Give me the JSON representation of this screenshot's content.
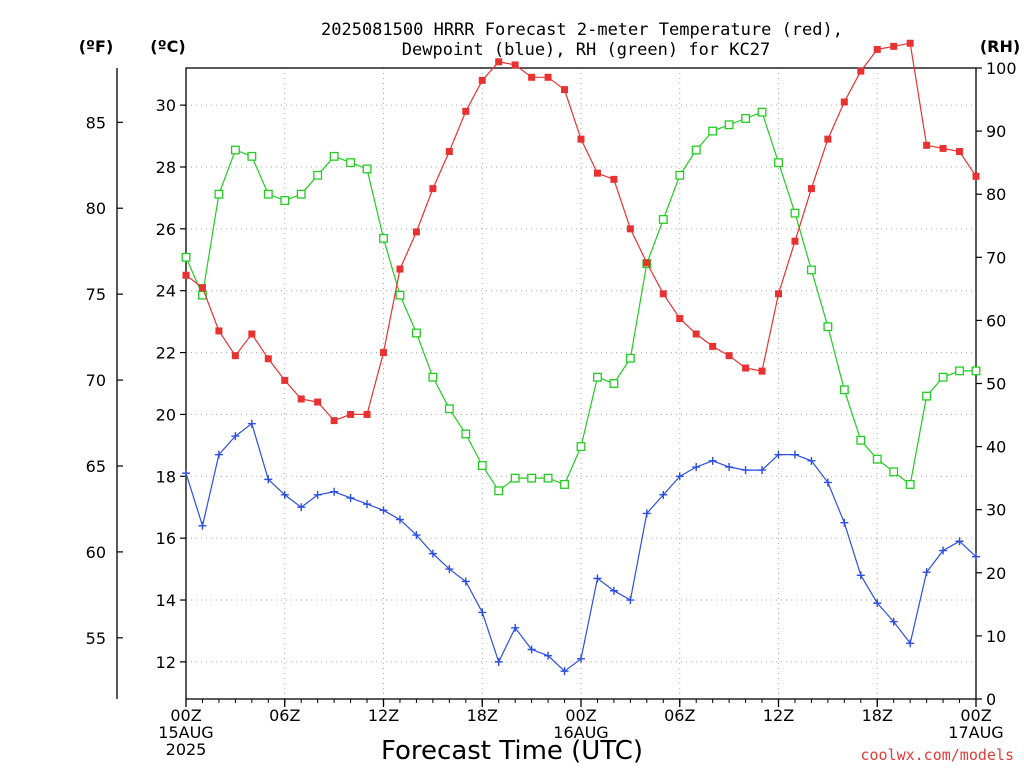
{
  "chart_data": {
    "type": "line",
    "title_line1": "2025081500 HRRR Forecast 2-meter Temperature (red),",
    "title_line2": "Dewpoint (blue), RH (green) for KC27",
    "xlabel": "Forecast Time (UTC)",
    "credit": "coolwx.com/models",
    "units": {
      "f": "(ºF)",
      "c": "(ºC)",
      "rh": "(RH)"
    },
    "x": [
      0,
      1,
      2,
      3,
      4,
      5,
      6,
      7,
      8,
      9,
      10,
      11,
      12,
      13,
      14,
      15,
      16,
      17,
      18,
      19,
      20,
      21,
      22,
      23,
      24,
      25,
      26,
      27,
      28,
      29,
      30,
      31,
      32,
      33,
      34,
      35,
      36,
      37,
      38,
      39,
      40,
      41,
      42,
      43,
      44,
      45,
      46,
      47,
      48
    ],
    "xlim": [
      0,
      48
    ],
    "x_ticks": [
      {
        "x": 0,
        "lines": [
          "00Z",
          "15AUG",
          "2025"
        ]
      },
      {
        "x": 6,
        "lines": [
          "06Z"
        ]
      },
      {
        "x": 12,
        "lines": [
          "12Z"
        ]
      },
      {
        "x": 18,
        "lines": [
          "18Z"
        ]
      },
      {
        "x": 24,
        "lines": [
          "00Z",
          "16AUG"
        ]
      },
      {
        "x": 30,
        "lines": [
          "06Z"
        ]
      },
      {
        "x": 36,
        "lines": [
          "12Z"
        ]
      },
      {
        "x": 42,
        "lines": [
          "18Z"
        ]
      },
      {
        "x": 48,
        "lines": [
          "00Z",
          "17AUG"
        ]
      }
    ],
    "ylim_c": [
      10.8,
      31.2
    ],
    "yticks_c": [
      "12",
      "14",
      "16",
      "18",
      "20",
      "22",
      "24",
      "26",
      "28",
      "30"
    ],
    "yticks_f": [
      "55",
      "60",
      "65",
      "70",
      "75",
      "80",
      "85"
    ],
    "ylim_rh": [
      0,
      100
    ],
    "yticks_rh": [
      "0",
      "10",
      "20",
      "30",
      "40",
      "50",
      "60",
      "70",
      "80",
      "90",
      "100"
    ],
    "grid": true,
    "series": [
      {
        "name": "Temperature",
        "color": "#e83232",
        "marker": "filled-square",
        "axis": "c",
        "values": [
          24.5,
          24.1,
          22.7,
          21.9,
          22.6,
          21.8,
          21.1,
          20.5,
          20.4,
          19.8,
          20.0,
          20.0,
          22.0,
          24.7,
          25.9,
          27.3,
          28.5,
          29.8,
          30.8,
          31.4,
          31.3,
          30.9,
          30.9,
          30.5,
          28.9,
          27.8,
          27.6,
          26.0,
          24.9,
          23.9,
          23.1,
          22.6,
          22.2,
          21.9,
          21.5,
          21.4,
          23.9,
          25.6,
          27.3,
          28.9,
          30.1,
          31.1,
          31.8,
          31.9,
          32.0,
          28.7,
          28.6,
          28.5,
          27.7
        ]
      },
      {
        "name": "Dewpoint",
        "color": "#2b4fe0",
        "marker": "plus",
        "axis": "c",
        "values": [
          18.1,
          16.4,
          18.7,
          19.3,
          19.7,
          17.9,
          17.4,
          17.0,
          17.4,
          17.5,
          17.3,
          17.1,
          16.9,
          16.6,
          16.1,
          15.5,
          15.0,
          14.6,
          13.6,
          12.0,
          13.1,
          12.4,
          12.2,
          11.7,
          12.1,
          14.7,
          14.3,
          14.0,
          16.8,
          17.4,
          18.0,
          18.3,
          18.5,
          18.3,
          18.2,
          18.2,
          18.7,
          18.7,
          18.5,
          17.8,
          16.5,
          14.8,
          13.9,
          13.3,
          12.6,
          14.9,
          15.6,
          15.9,
          15.4
        ]
      },
      {
        "name": "RH",
        "color": "#22cc22",
        "marker": "open-square",
        "axis": "rh",
        "values": [
          70,
          64,
          80,
          87,
          86,
          80,
          79,
          80,
          83,
          86,
          85,
          84,
          73,
          64,
          58,
          51,
          46,
          42,
          37,
          33,
          35,
          35,
          35,
          34,
          40,
          51,
          50,
          54,
          69,
          76,
          83,
          87,
          90,
          91,
          92,
          93,
          85,
          77,
          68,
          59,
          49,
          41,
          38,
          36,
          34,
          48,
          51,
          52,
          52
        ]
      }
    ]
  }
}
